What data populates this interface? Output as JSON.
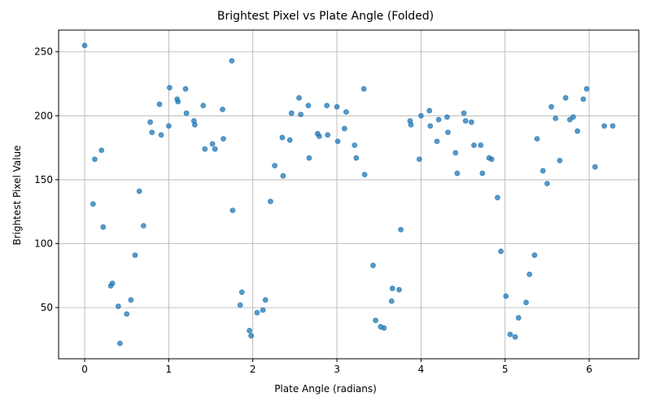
{
  "chart_data": {
    "type": "scatter",
    "title": "Brightest Pixel vs Plate Angle (Folded)",
    "xlabel": "Plate Angle (radians)",
    "ylabel": "Brightest Pixel Value",
    "xlim": [
      -0.31,
      6.59
    ],
    "ylim": [
      10,
      267
    ],
    "xticks": [
      0,
      1,
      2,
      3,
      4,
      5,
      6
    ],
    "yticks": [
      50,
      100,
      150,
      200,
      250
    ],
    "grid": true,
    "color": "#1f77b4",
    "alpha": 0.75,
    "points": [
      [
        0.0,
        255
      ],
      [
        0.1,
        131
      ],
      [
        0.12,
        166
      ],
      [
        0.2,
        173
      ],
      [
        0.22,
        113
      ],
      [
        0.31,
        67
      ],
      [
        0.33,
        69
      ],
      [
        0.4,
        51
      ],
      [
        0.42,
        22
      ],
      [
        0.5,
        45
      ],
      [
        0.55,
        56
      ],
      [
        0.6,
        91
      ],
      [
        0.65,
        141
      ],
      [
        0.7,
        114
      ],
      [
        0.78,
        195
      ],
      [
        0.8,
        187
      ],
      [
        0.89,
        209
      ],
      [
        0.91,
        185
      ],
      [
        1.0,
        192
      ],
      [
        1.01,
        222
      ],
      [
        1.1,
        213
      ],
      [
        1.11,
        211
      ],
      [
        1.2,
        221
      ],
      [
        1.21,
        202
      ],
      [
        1.3,
        196
      ],
      [
        1.31,
        193
      ],
      [
        1.41,
        208
      ],
      [
        1.43,
        174
      ],
      [
        1.52,
        178
      ],
      [
        1.55,
        174
      ],
      [
        1.64,
        205
      ],
      [
        1.65,
        182
      ],
      [
        1.75,
        243
      ],
      [
        1.76,
        126
      ],
      [
        1.85,
        52
      ],
      [
        1.87,
        62
      ],
      [
        1.96,
        32
      ],
      [
        1.98,
        28
      ],
      [
        2.05,
        46
      ],
      [
        2.12,
        48
      ],
      [
        2.15,
        56
      ],
      [
        2.21,
        133
      ],
      [
        2.26,
        161
      ],
      [
        2.35,
        183
      ],
      [
        2.36,
        153
      ],
      [
        2.44,
        181
      ],
      [
        2.46,
        202
      ],
      [
        2.55,
        214
      ],
      [
        2.57,
        201
      ],
      [
        2.66,
        208
      ],
      [
        2.67,
        167
      ],
      [
        2.77,
        186
      ],
      [
        2.79,
        184
      ],
      [
        2.88,
        208
      ],
      [
        2.89,
        185
      ],
      [
        3.0,
        207
      ],
      [
        3.01,
        180
      ],
      [
        3.09,
        190
      ],
      [
        3.11,
        203
      ],
      [
        3.21,
        177
      ],
      [
        3.23,
        167
      ],
      [
        3.32,
        221
      ],
      [
        3.33,
        154
      ],
      [
        3.43,
        83
      ],
      [
        3.46,
        40
      ],
      [
        3.52,
        35
      ],
      [
        3.56,
        34
      ],
      [
        3.65,
        55
      ],
      [
        3.66,
        65
      ],
      [
        3.74,
        64
      ],
      [
        3.76,
        111
      ],
      [
        3.87,
        196
      ],
      [
        3.88,
        193
      ],
      [
        3.98,
        166
      ],
      [
        4.0,
        200
      ],
      [
        4.1,
        204
      ],
      [
        4.11,
        192
      ],
      [
        4.19,
        180
      ],
      [
        4.21,
        197
      ],
      [
        4.31,
        199
      ],
      [
        4.32,
        187
      ],
      [
        4.41,
        171
      ],
      [
        4.43,
        155
      ],
      [
        4.51,
        202
      ],
      [
        4.53,
        196
      ],
      [
        4.6,
        195
      ],
      [
        4.63,
        177
      ],
      [
        4.71,
        177
      ],
      [
        4.73,
        155
      ],
      [
        4.81,
        167
      ],
      [
        4.84,
        166
      ],
      [
        4.91,
        136
      ],
      [
        4.95,
        94
      ],
      [
        5.01,
        59
      ],
      [
        5.06,
        29
      ],
      [
        5.12,
        27
      ],
      [
        5.16,
        42
      ],
      [
        5.25,
        54
      ],
      [
        5.29,
        76
      ],
      [
        5.35,
        91
      ],
      [
        5.38,
        182
      ],
      [
        5.45,
        157
      ],
      [
        5.5,
        147
      ],
      [
        5.55,
        207
      ],
      [
        5.6,
        198
      ],
      [
        5.65,
        165
      ],
      [
        5.72,
        214
      ],
      [
        5.77,
        197
      ],
      [
        5.81,
        199
      ],
      [
        5.86,
        188
      ],
      [
        5.93,
        213
      ],
      [
        5.97,
        221
      ],
      [
        6.07,
        160
      ],
      [
        6.18,
        192
      ],
      [
        6.28,
        192
      ]
    ]
  }
}
